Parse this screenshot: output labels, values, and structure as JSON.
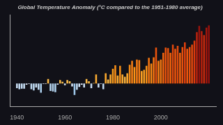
{
  "chart_data": {
    "type": "bar",
    "title": "Global Temperature Anomaly (°C compared to the 1951-1980 average)",
    "x": [
      1940,
      1941,
      1942,
      1943,
      1944,
      1945,
      1946,
      1947,
      1948,
      1949,
      1950,
      1951,
      1952,
      1953,
      1954,
      1955,
      1956,
      1957,
      1958,
      1959,
      1960,
      1961,
      1962,
      1963,
      1964,
      1965,
      1966,
      1967,
      1968,
      1969,
      1970,
      1971,
      1972,
      1973,
      1974,
      1975,
      1976,
      1977,
      1978,
      1979,
      1980,
      1981,
      1982,
      1983,
      1984,
      1985,
      1986,
      1987,
      1988,
      1989,
      1990,
      1991,
      1992,
      1993,
      1994,
      1995,
      1996,
      1997,
      1998,
      1999,
      2000,
      2001,
      2002,
      2003,
      2004,
      2005,
      2006,
      2007,
      2008,
      2009,
      2010,
      2011,
      2012,
      2013,
      2014,
      2015,
      2016,
      2017,
      2018,
      2019,
      2020
    ],
    "values": [
      -0.08,
      -0.1,
      -0.09,
      -0.09,
      -0.02,
      -0.01,
      -0.1,
      -0.12,
      -0.07,
      -0.11,
      -0.16,
      -0.01,
      -0.01,
      0.08,
      -0.13,
      -0.14,
      -0.15,
      -0.02,
      0.06,
      0.03,
      -0.03,
      0.06,
      0.04,
      -0.05,
      -0.2,
      -0.11,
      -0.06,
      -0.02,
      -0.07,
      0.08,
      0.04,
      -0.08,
      0.01,
      0.16,
      -0.07,
      -0.01,
      -0.1,
      0.18,
      0.07,
      0.16,
      0.26,
      0.32,
      0.14,
      0.31,
      0.16,
      0.12,
      0.18,
      0.33,
      0.4,
      0.29,
      0.42,
      0.41,
      0.22,
      0.24,
      0.31,
      0.45,
      0.35,
      0.46,
      0.63,
      0.4,
      0.42,
      0.54,
      0.63,
      0.62,
      0.54,
      0.68,
      0.61,
      0.66,
      0.54,
      0.64,
      0.72,
      0.61,
      0.64,
      0.68,
      0.75,
      0.9,
      1.01,
      0.92,
      0.85,
      0.98,
      1.02
    ],
    "colors": [
      "#c9def3",
      "#c2dbf2",
      "#c5ddf3",
      "#c5ddf3",
      "#dee9f8",
      "#e2ebf9",
      "#c2dbf2",
      "#bbd7f0",
      "#cce0f4",
      "#bed9f1",
      "#acd0ed",
      "#e2ebf9",
      "#e2ebf9",
      "#fab946",
      "#b7d5ef",
      "#b4d3ee",
      "#b0d2ee",
      "#dee9f8",
      "#fabc4b",
      "#fac252",
      "#dbe8f7",
      "#fabc4b",
      "#fac050",
      "#d4e4f6",
      "#9ec8ea",
      "#bed9f1",
      "#d0e2f5",
      "#dee9f8",
      "#cce0f4",
      "#fab946",
      "#fac050",
      "#c9def3",
      "#fac557",
      "#faab32",
      "#cce0f4",
      "#e2ebf9",
      "#c2dbf2",
      "#faa72e",
      "#fabb48",
      "#faab32",
      "#fa991a",
      "#f88e17",
      "#faae37",
      "#f89017",
      "#faab32",
      "#fab23c",
      "#faa72e",
      "#f88c16",
      "#f67e13",
      "#f99418",
      "#f57a12",
      "#f67c12",
      "#faa024",
      "#fa9d1f",
      "#f89017",
      "#f47510",
      "#f78815",
      "#f47310",
      "#e8520d",
      "#f67e13",
      "#f57a12",
      "#f1630d",
      "#e8520d",
      "#e9530d",
      "#f1630d",
      "#e3480d",
      "#ea550d",
      "#e54c0d",
      "#f1630d",
      "#e7500d",
      "#df400d",
      "#ea550d",
      "#e7500d",
      "#e3480d",
      "#dc3a0d",
      "#b8230d",
      "#98130d",
      "#b2200d",
      "#c62a0d",
      "#a1170d",
      "#95110d"
    ],
    "xlim": [
      1937,
      2023
    ],
    "xticks": [
      1940,
      1960,
      1980,
      2000
    ],
    "ylim": [
      -0.4,
      1.2
    ],
    "tick_labels": "x",
    "grid": false
  }
}
